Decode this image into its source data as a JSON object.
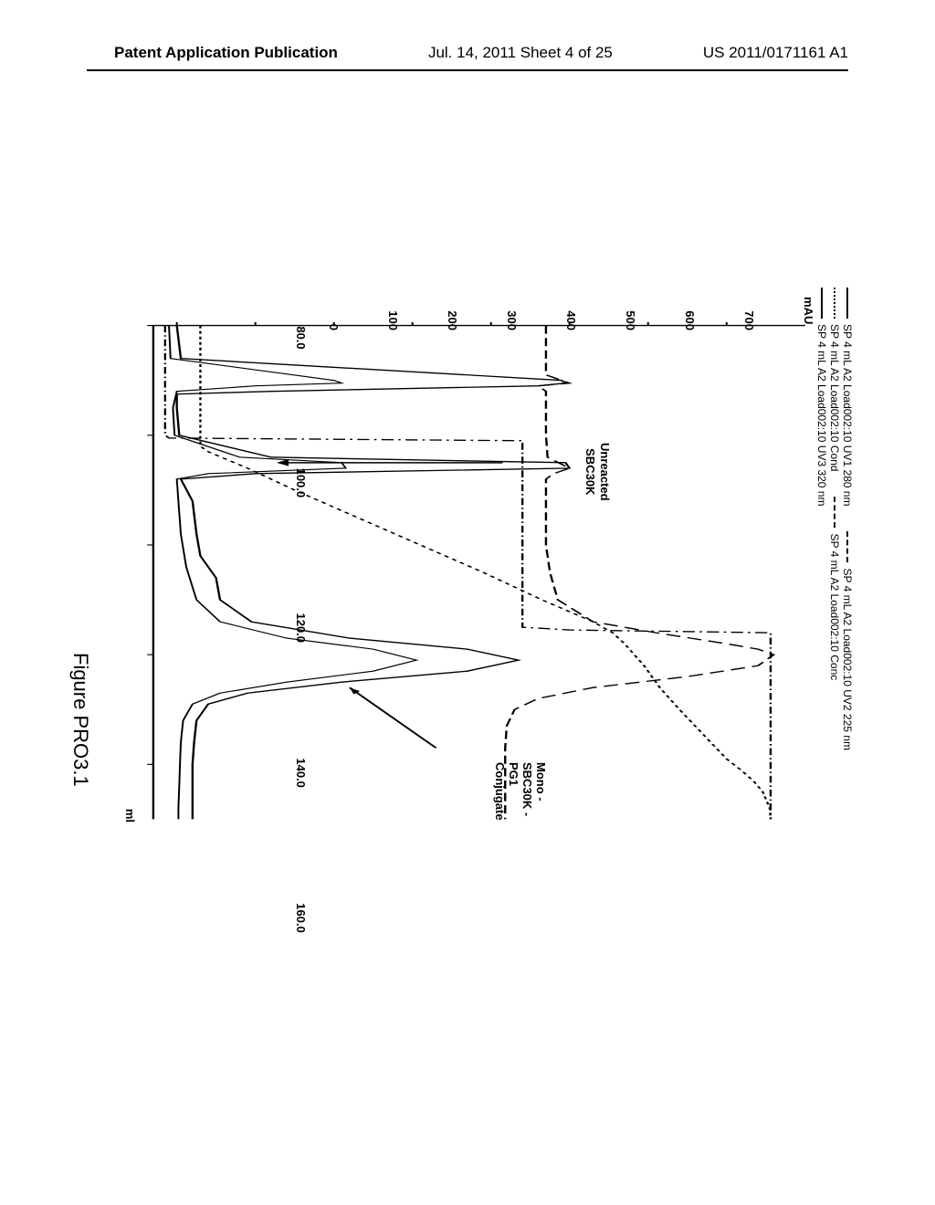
{
  "header": {
    "left": "Patent Application Publication",
    "center": "Jul. 14, 2011  Sheet 4 of 25",
    "right": "US 2011/0171161 A1"
  },
  "chart": {
    "type": "line",
    "caption": "Figure PRO3.1",
    "x_unit": "ml",
    "y_unit": "mAU",
    "xlim": [
      80,
      170
    ],
    "ylim": [
      -30,
      800
    ],
    "xtick_values": [
      80.0,
      100.0,
      120.0,
      140.0,
      160.0
    ],
    "xtick_labels": [
      "80.0",
      "100.0",
      "120.0",
      "140.0",
      "160.0"
    ],
    "ytick_values": [
      0,
      100,
      200,
      300,
      400,
      500,
      600,
      700
    ],
    "ytick_labels": [
      "0",
      "100",
      "200",
      "300",
      "400",
      "500",
      "600",
      "700"
    ],
    "background_color": "#ffffff",
    "axis_color": "#000000",
    "legend": [
      {
        "label": "SP 4 mL A2 Load002:10 UV1 280 nm",
        "dash": "solid"
      },
      {
        "label": "SP 4 mL A2 Load002:10 UV2 225 nm",
        "dash": "longdash"
      },
      {
        "label": "SP 4 mL A2 Load002:10 Cond",
        "dash": "shortdash"
      },
      {
        "label": "SP 4 mL A2 Load002:10 Conc",
        "dash": "dashdot"
      },
      {
        "label": "SP 4 mL A2 Load002:10 UV3 320 nm",
        "dash": "solid"
      }
    ],
    "annotations": {
      "unreacted": "Unreacted\nSBC30K",
      "mono": "Mono - SBC30K - PG1 Conjugate"
    },
    "series": {
      "uv1_280": {
        "dash": "solid",
        "stroke_width": 1.8,
        "points": [
          [
            80,
            0
          ],
          [
            86,
            5
          ],
          [
            90,
            490
          ],
          [
            90.5,
            495
          ],
          [
            91,
            460
          ],
          [
            92,
            120
          ],
          [
            92.5,
            0
          ],
          [
            95,
            0
          ],
          [
            100,
            3
          ],
          [
            104,
            120
          ],
          [
            105,
            495
          ],
          [
            106,
            500
          ],
          [
            107,
            100
          ],
          [
            108,
            5
          ],
          [
            112,
            20
          ],
          [
            118,
            25
          ],
          [
            122,
            30
          ],
          [
            126,
            50
          ],
          [
            130,
            55
          ],
          [
            134,
            95
          ],
          [
            137,
            220
          ],
          [
            139,
            370
          ],
          [
            141,
            435
          ],
          [
            143,
            370
          ],
          [
            145,
            210
          ],
          [
            147,
            90
          ],
          [
            149,
            40
          ],
          [
            152,
            25
          ],
          [
            156,
            22
          ],
          [
            160,
            20
          ],
          [
            164,
            20
          ],
          [
            168,
            20
          ],
          [
            170,
            20
          ]
        ]
      },
      "uv2_225": {
        "dash": "longdash",
        "stroke_width": 1.8,
        "points": [
          [
            80,
            470
          ],
          [
            83,
            470
          ],
          [
            86,
            470
          ],
          [
            89,
            470
          ],
          [
            90,
            490
          ],
          [
            90.5,
            500
          ],
          [
            91,
            460
          ],
          [
            92,
            470
          ],
          [
            95,
            470
          ],
          [
            100,
            470
          ],
          [
            104,
            472
          ],
          [
            106,
            500
          ],
          [
            107,
            480
          ],
          [
            108,
            470
          ],
          [
            110,
            470
          ],
          [
            115,
            470
          ],
          [
            120,
            470
          ],
          [
            125,
            475
          ],
          [
            130,
            485
          ],
          [
            134,
            530
          ],
          [
            136,
            610
          ],
          [
            138,
            700
          ],
          [
            139,
            740
          ],
          [
            140,
            760
          ],
          [
            142,
            740
          ],
          [
            144,
            650
          ],
          [
            146,
            530
          ],
          [
            148,
            460
          ],
          [
            150,
            430
          ],
          [
            153,
            420
          ],
          [
            157,
            418
          ],
          [
            160,
            418
          ],
          [
            164,
            418
          ],
          [
            168,
            418
          ],
          [
            170,
            418
          ]
        ]
      },
      "uv3_320": {
        "dash": "solid",
        "stroke_width": 1.5,
        "points": [
          [
            80,
            -10
          ],
          [
            86,
            -8
          ],
          [
            90,
            200
          ],
          [
            90.5,
            210
          ],
          [
            91,
            100
          ],
          [
            92,
            0
          ],
          [
            95,
            -5
          ],
          [
            100,
            -3
          ],
          [
            104,
            80
          ],
          [
            105,
            210
          ],
          [
            106,
            215
          ],
          [
            107,
            40
          ],
          [
            108,
            0
          ],
          [
            112,
            2
          ],
          [
            118,
            5
          ],
          [
            124,
            12
          ],
          [
            130,
            25
          ],
          [
            134,
            55
          ],
          [
            137,
            140
          ],
          [
            139,
            250
          ],
          [
            141,
            305
          ],
          [
            143,
            250
          ],
          [
            145,
            140
          ],
          [
            147,
            55
          ],
          [
            149,
            20
          ],
          [
            152,
            8
          ],
          [
            156,
            5
          ],
          [
            160,
            4
          ],
          [
            164,
            3
          ],
          [
            168,
            2
          ],
          [
            170,
            2
          ]
        ]
      },
      "cond": {
        "dash": "shortdash",
        "stroke_width": 1.8,
        "points": [
          [
            80,
            30
          ],
          [
            95,
            30
          ],
          [
            100,
            30
          ],
          [
            102,
            30
          ],
          [
            103,
            40
          ],
          [
            106,
            90
          ],
          [
            110,
            150
          ],
          [
            115,
            230
          ],
          [
            120,
            310
          ],
          [
            125,
            390
          ],
          [
            130,
            465
          ],
          [
            134,
            530
          ],
          [
            136,
            555
          ],
          [
            138,
            570
          ],
          [
            142,
            595
          ],
          [
            146,
            615
          ],
          [
            150,
            640
          ],
          [
            153,
            660
          ],
          [
            156,
            680
          ],
          [
            159,
            700
          ],
          [
            161,
            718
          ],
          [
            163,
            734
          ],
          [
            165,
            746
          ],
          [
            167,
            752
          ],
          [
            168,
            755
          ],
          [
            170,
            756
          ]
        ]
      },
      "conc": {
        "dash": "dashdot",
        "stroke_width": 1.8,
        "points": [
          [
            80,
            -15
          ],
          [
            95,
            -15
          ],
          [
            99,
            -15
          ],
          [
            100,
            -15
          ],
          [
            100.5,
            -10
          ],
          [
            101,
            440
          ],
          [
            105,
            440
          ],
          [
            110,
            440
          ],
          [
            115,
            440
          ],
          [
            120,
            440
          ],
          [
            125,
            440
          ],
          [
            130,
            440
          ],
          [
            133,
            440
          ],
          [
            134,
            440
          ],
          [
            134.5,
            440
          ],
          [
            135,
            440
          ],
          [
            135.5,
            500
          ],
          [
            136,
            756
          ],
          [
            140,
            756
          ],
          [
            145,
            756
          ],
          [
            150,
            756
          ],
          [
            155,
            756
          ],
          [
            160,
            756
          ],
          [
            165,
            756
          ],
          [
            168,
            756
          ],
          [
            170,
            756
          ]
        ]
      }
    },
    "dash_map": {
      "solid": "none",
      "longdash": "12 6",
      "shortdash": "4 4",
      "dashdot": "10 4 2 4"
    }
  }
}
